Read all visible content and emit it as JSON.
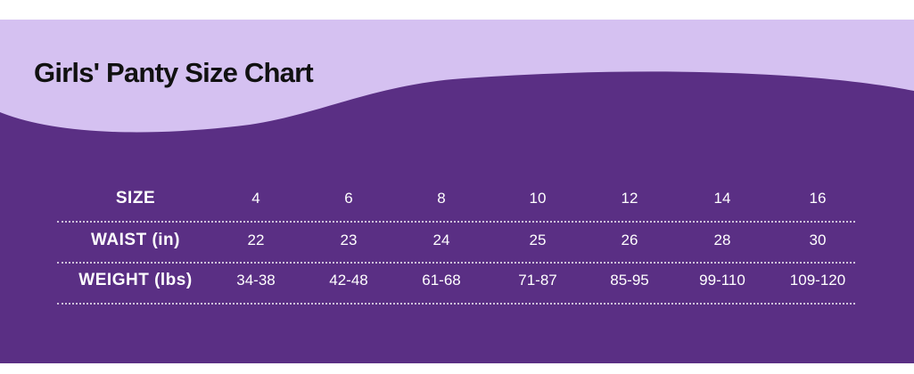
{
  "title": "Girls' Panty Size Chart",
  "colors": {
    "light_band": "#d5c1f1",
    "main_band": "#5a2f84",
    "text": "#ffffff"
  },
  "table": {
    "rows": [
      {
        "label": "SIZE",
        "values": [
          "4",
          "6",
          "8",
          "10",
          "12",
          "14",
          "16"
        ]
      },
      {
        "label": "WAIST (in)",
        "values": [
          "22",
          "23",
          "24",
          "25",
          "26",
          "28",
          "30"
        ]
      },
      {
        "label": "WEIGHT (lbs)",
        "values": [
          "34-38",
          "42-48",
          "61-68",
          "71-87",
          "85-95",
          "99-110",
          "109-120"
        ]
      }
    ]
  }
}
